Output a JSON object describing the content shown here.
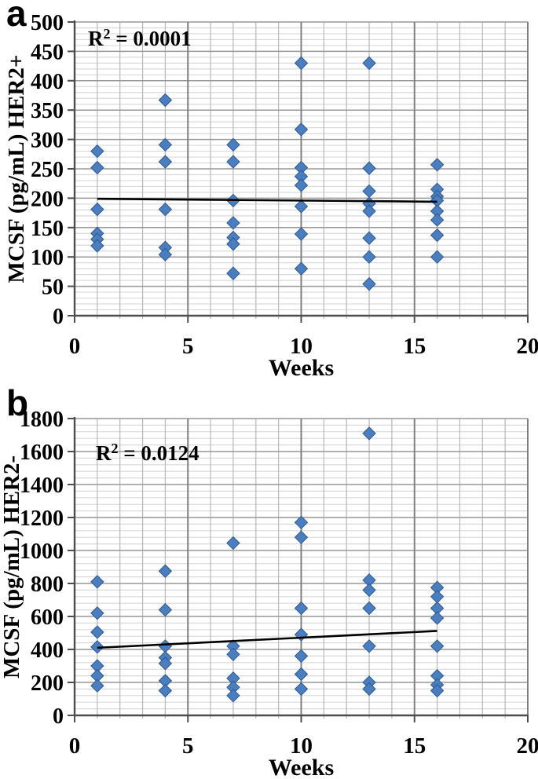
{
  "figure": {
    "description": "Two-panel scatter figure of MCSF concentration over weeks",
    "marker_color": "#4A7EBE",
    "marker_edge_color": "#2F5A93",
    "trendline_color": "#000000",
    "axis_color": "#4D4D4D",
    "grid_major_color": "#999999",
    "grid_minor_color": "#DADADA",
    "grid_vminor_color": "#B8B8B8",
    "grid_vmajor_color": "#7F7F7F"
  },
  "chart_data": [
    {
      "type": "scatter",
      "panel_letter": "a",
      "title": "",
      "annotation": "R² = 0.0001",
      "xlabel": "Weeks",
      "ylabel": "MCSF (pg/mL) HER2+",
      "xlim": [
        0,
        20
      ],
      "ylim": [
        0,
        500
      ],
      "x_major": 5,
      "x_minor": 1,
      "y_major": 50,
      "y_minor": 10,
      "x_tick_labels": [
        "0",
        "5",
        "10",
        "15",
        "20"
      ],
      "y_tick_labels": [
        "0",
        "50",
        "100",
        "150",
        "200",
        "250",
        "300",
        "350",
        "400",
        "450",
        "500"
      ],
      "grid": "on",
      "legend": "none",
      "series": [
        {
          "name": "MCSF HER2+",
          "marker": "diamond",
          "groups": [
            {
              "x": 1,
              "values": [
                280,
                252,
                181,
                140,
                130,
                119
              ]
            },
            {
              "x": 4,
              "values": [
                367,
                291,
                262,
                181,
                116,
                104
              ]
            },
            {
              "x": 7,
              "values": [
                291,
                262,
                196,
                158,
                133,
                122,
                72
              ]
            },
            {
              "x": 10,
              "values": [
                430,
                317,
                252,
                237,
                222,
                186,
                139,
                80
              ]
            },
            {
              "x": 13,
              "values": [
                430,
                251,
                212,
                191,
                178,
                132,
                100,
                54
              ]
            },
            {
              "x": 16,
              "values": [
                257,
                215,
                203,
                196,
                178,
                163,
                137,
                100
              ]
            }
          ]
        }
      ],
      "trendline": {
        "x": [
          1,
          16
        ],
        "y": [
          199,
          194
        ]
      }
    },
    {
      "type": "scatter",
      "panel_letter": "b",
      "title": "",
      "annotation": "R² = 0.0124",
      "xlabel": "Weeks",
      "ylabel": "MCSF (pg/mL) HER2-",
      "xlim": [
        0,
        20
      ],
      "ylim": [
        0,
        1800
      ],
      "x_major": 5,
      "x_minor": 1,
      "y_major": 200,
      "y_minor": 40,
      "x_tick_labels": [
        "0",
        "5",
        "10",
        "15",
        "20"
      ],
      "y_tick_labels": [
        "0",
        "200",
        "400",
        "600",
        "800",
        "1000",
        "1200",
        "1400",
        "1600",
        "1800"
      ],
      "grid": "on",
      "legend": "none",
      "series": [
        {
          "name": "MCSF HER2-",
          "marker": "diamond",
          "groups": [
            {
              "x": 1,
              "values": [
                810,
                620,
                505,
                415,
                300,
                240,
                180
              ]
            },
            {
              "x": 4,
              "values": [
                875,
                640,
                420,
                350,
                315,
                210,
                150
              ]
            },
            {
              "x": 7,
              "values": [
                1045,
                420,
                370,
                225,
                170,
                120
              ]
            },
            {
              "x": 10,
              "values": [
                1170,
                1080,
                650,
                490,
                360,
                250,
                160
              ]
            },
            {
              "x": 13,
              "values": [
                1710,
                820,
                760,
                650,
                420,
                200,
                160
              ]
            },
            {
              "x": 16,
              "values": [
                775,
                720,
                650,
                590,
                420,
                240,
                185,
                150
              ]
            }
          ]
        }
      ],
      "trendline": {
        "x": [
          1,
          16
        ],
        "y": [
          410,
          512
        ]
      }
    }
  ]
}
